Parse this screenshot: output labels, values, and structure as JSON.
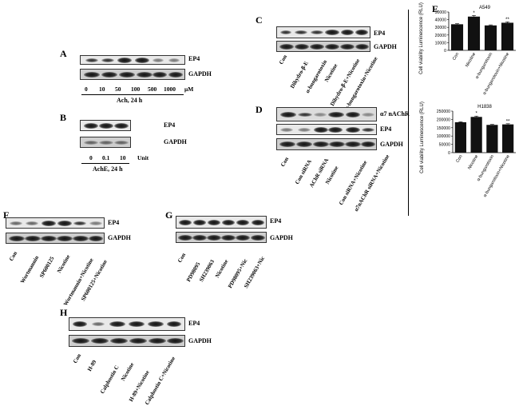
{
  "panels": {
    "A": {
      "letter": "A",
      "target": "EP4",
      "loading": "GAPDH",
      "doses": [
        "0",
        "10",
        "50",
        "100",
        "500",
        "1000",
        "μM"
      ],
      "condition": "Ach, 24 h"
    },
    "B": {
      "letter": "B",
      "target": "EP4",
      "loading": "GAPDH",
      "doses": [
        "0",
        "0.1",
        "10",
        "Unit"
      ],
      "condition": "AchE, 24 h"
    },
    "C": {
      "letter": "C",
      "target": "EP4",
      "loading": "GAPDH",
      "lanes": [
        "Con",
        "Dihydro-β-E",
        "α-bungarotoxin",
        "Nicotine",
        "Dihydro-β-E+Nicotine",
        "α-bungarotoxin+Nicotine"
      ]
    },
    "D": {
      "letter": "D",
      "top": "α7 nAChR",
      "target": "EP4",
      "loading": "GAPDH",
      "lanes": [
        "Con",
        "Con siRNA",
        "AChR siRNA",
        "Nicotine",
        "Con siRNA+Nicotine",
        "α7nAChR siRNA+Nicotine"
      ]
    },
    "E": {
      "letter": "E",
      "cell_a549": "A549",
      "cell_h1838": "H1838",
      "ylabel": "Cell viability Luminescence (RLU)"
    },
    "F": {
      "letter": "F",
      "target": "EP4",
      "loading": "GAPDH",
      "lanes": [
        "Con",
        "Wortmannin",
        "SP600125",
        "Nicotine",
        "Wortmannin+Nicotine",
        "SP600125+Nicotine"
      ]
    },
    "G": {
      "letter": "G",
      "target": "EP4",
      "loading": "GAPDH",
      "lanes": [
        "Con",
        "PD98095",
        "SH239063",
        "Nicotine",
        "PD98095+Nic",
        "SH239063+Nic"
      ]
    },
    "H": {
      "letter": "H",
      "target": "EP4",
      "loading": "GAPDH",
      "lanes": [
        "Con",
        "H-89",
        "Calphostin C",
        "Nicotine",
        "H-89+Nicotine",
        "Calphostin C+Nicotine"
      ]
    }
  },
  "chart_data": [
    {
      "type": "bar",
      "title": "A549",
      "ylabel": "Cell viability Luminescence (RLU)",
      "categories": [
        "Con",
        "Nicotine",
        "α-bungarotoxin",
        "α-bungarotoxin+Nicotine"
      ],
      "values": [
        34000,
        44000,
        32500,
        36000
      ],
      "errors": [
        800,
        1500,
        700,
        1200
      ],
      "significance": [
        "",
        "*",
        "",
        "**"
      ],
      "ylim": [
        0,
        50000
      ],
      "yticks": [
        "0",
        "10000",
        "20000",
        "30000",
        "40000",
        "50000"
      ]
    },
    {
      "type": "bar",
      "title": "H1838",
      "ylabel": "Cell viability Luminescence (RLU)",
      "categories": [
        "Con",
        "Nicotine",
        "α-bungarotoxin",
        "α-bungarotoxin+Nicotine"
      ],
      "values": [
        183000,
        215000,
        167000,
        170000
      ],
      "errors": [
        3000,
        5000,
        3000,
        4000
      ],
      "significance": [
        "",
        "*",
        "",
        "**"
      ],
      "ylim": [
        0,
        250000
      ],
      "yticks": [
        "0",
        "50000",
        "100000",
        "150000",
        "200000",
        "250000"
      ]
    }
  ]
}
